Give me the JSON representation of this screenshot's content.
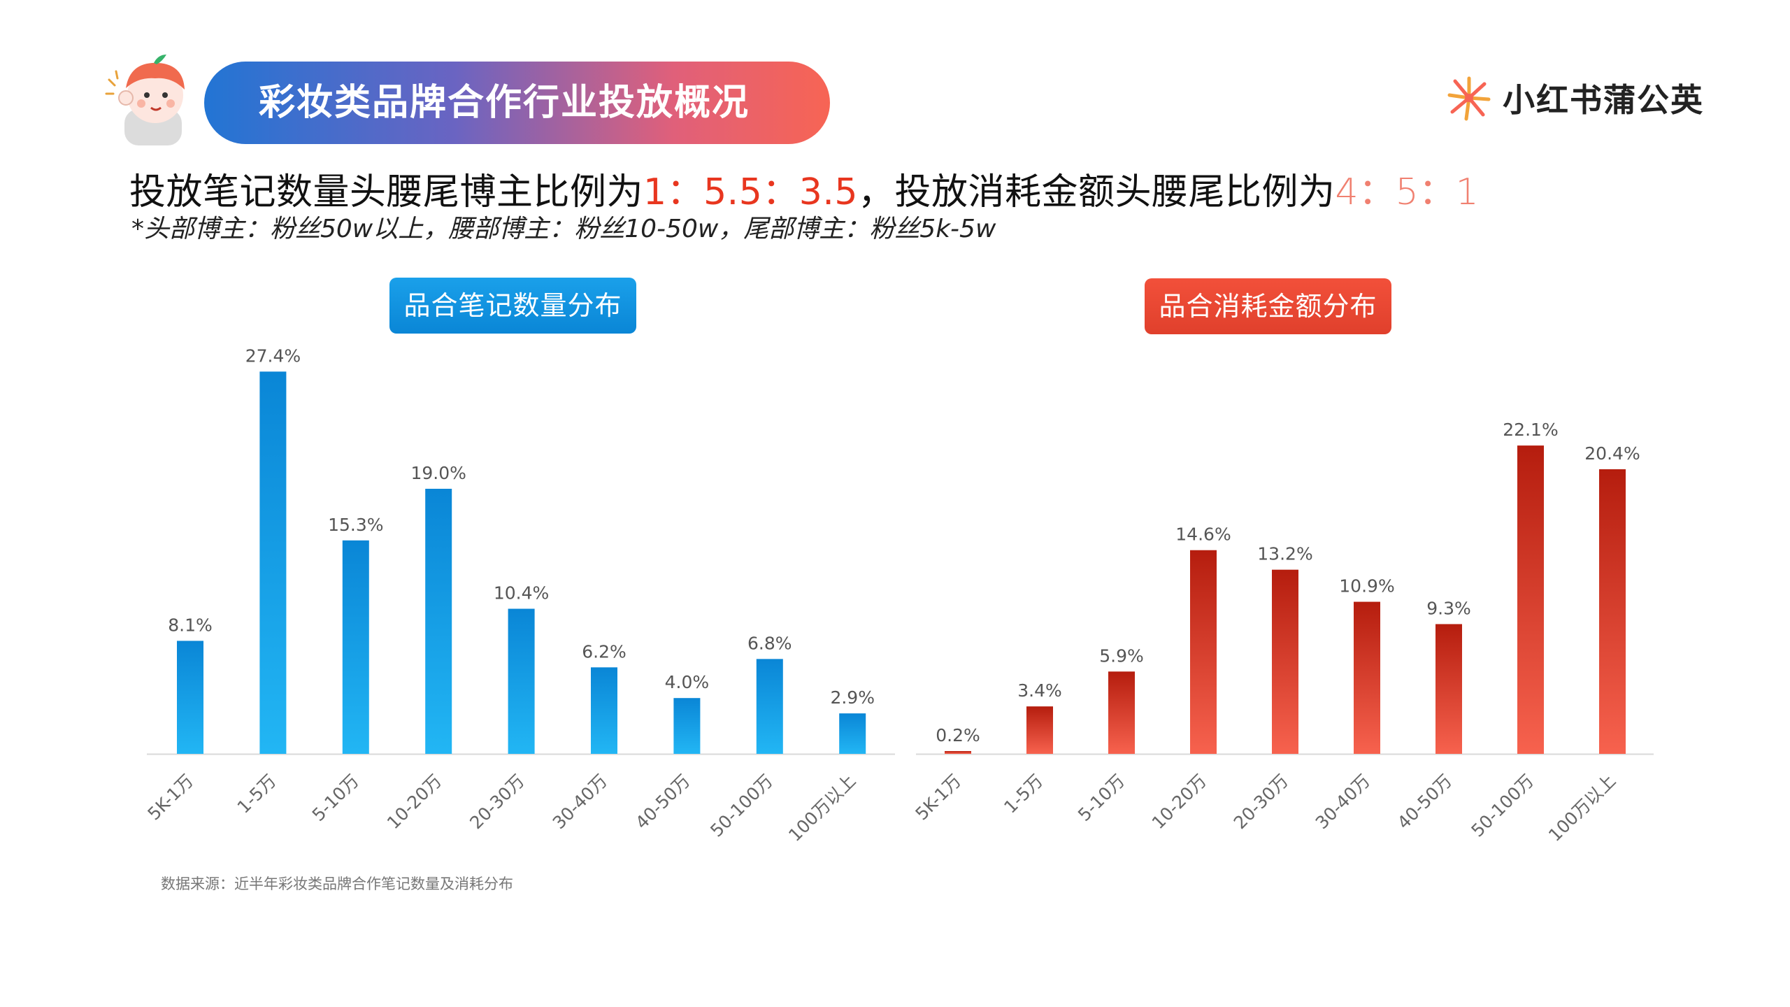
{
  "header": {
    "title": "彩妆类品牌合作行业投放概况",
    "brand_name": "小红书蒲公英"
  },
  "headline": {
    "part1": "投放笔记数量头腰尾博主比例为",
    "ratio1": "1：5.5：3.5",
    "part2": "，投放消耗金额头腰尾比例为",
    "ratio2": "4：5：1"
  },
  "note": "*头部博主：粉丝50w以上，腰部博主：粉丝10-50w，尾部博主：粉丝5k-5w",
  "source": "数据来源：近半年彩妆类品牌合作笔记数量及消耗分布",
  "colors": {
    "blue_top": "#0a86d6",
    "blue_bottom": "#22b6f4",
    "red_top": "#b51d0e",
    "red_bottom": "#f7624e",
    "accent_red": "#e8361f"
  },
  "chart_data": [
    {
      "type": "bar",
      "title": "品合笔记数量分布",
      "categories": [
        "5K-1万",
        "1-5万",
        "5-10万",
        "10-20万",
        "20-30万",
        "30-40万",
        "40-50万",
        "50-100万",
        "100万以上"
      ],
      "values": [
        8.1,
        27.4,
        15.3,
        19.0,
        10.4,
        6.2,
        4.0,
        6.8,
        2.9
      ],
      "labels": [
        "8.1%",
        "27.4%",
        "15.3%",
        "19.0%",
        "10.4%",
        "6.2%",
        "4.0%",
        "6.8%",
        "2.9%"
      ],
      "unit": "%",
      "color": "blue"
    },
    {
      "type": "bar",
      "title": "品合消耗金额分布",
      "categories": [
        "5K-1万",
        "1-5万",
        "5-10万",
        "10-20万",
        "20-30万",
        "30-40万",
        "40-50万",
        "50-100万",
        "100万以上"
      ],
      "values": [
        0.2,
        3.4,
        5.9,
        14.6,
        13.2,
        10.9,
        9.3,
        22.1,
        20.4
      ],
      "labels": [
        "0.2%",
        "3.4%",
        "5.9%",
        "14.6%",
        "13.2%",
        "10.9%",
        "9.3%",
        "22.1%",
        "20.4%"
      ],
      "unit": "%",
      "color": "red"
    }
  ]
}
